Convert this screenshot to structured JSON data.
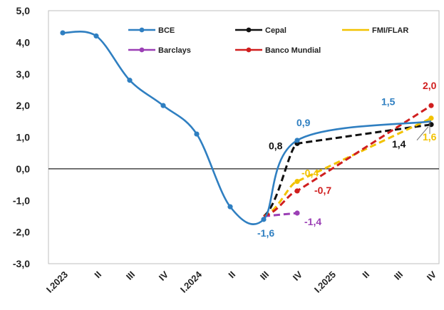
{
  "chart_data": {
    "type": "line",
    "title": "",
    "xlabel": "",
    "ylabel": "",
    "ylim": [
      -3.0,
      5.0
    ],
    "yticks": [
      "5,0",
      "4,0",
      "3,0",
      "2,0",
      "1,0",
      "0,0",
      "-1,0",
      "-2,0",
      "-3,0"
    ],
    "ytick_values": [
      5,
      4,
      3,
      2,
      1,
      0,
      -1,
      -2,
      -3
    ],
    "categories": [
      "I.2023",
      "II",
      "III",
      "IV",
      "I.2024",
      "II",
      "III",
      "IV",
      "I.2025",
      "II",
      "III",
      "IV"
    ],
    "grid": false,
    "legend_placement": "top",
    "series": [
      {
        "name": "BCE",
        "color": "#2f7fc1",
        "style": "solid-markers",
        "points": [
          [
            0,
            4.3
          ],
          [
            1,
            4.2
          ],
          [
            2,
            2.8
          ],
          [
            3,
            2.0
          ],
          [
            4,
            1.1
          ],
          [
            5,
            -1.2
          ],
          [
            6,
            -1.6
          ],
          [
            7,
            0.9
          ],
          [
            11,
            1.5
          ]
        ]
      },
      {
        "name": "Cepal",
        "color": "#111111",
        "style": "dashed",
        "points": [
          [
            6,
            -1.5
          ],
          [
            7,
            0.8
          ],
          [
            11,
            1.4
          ]
        ]
      },
      {
        "name": "FMI/FLAR",
        "color": "#f2c200",
        "style": "dashed",
        "points": [
          [
            6,
            -1.5
          ],
          [
            7,
            -0.4
          ],
          [
            11,
            1.6
          ]
        ]
      },
      {
        "name": "Barclays",
        "color": "#9b3fb5",
        "style": "dashed",
        "points": [
          [
            6,
            -1.5
          ],
          [
            7,
            -1.4
          ]
        ]
      },
      {
        "name": "Banco Mundial",
        "color": "#d01f1f",
        "style": "dashed",
        "points": [
          [
            6,
            -1.5
          ],
          [
            7,
            -0.7
          ],
          [
            11,
            2.0
          ]
        ]
      }
    ],
    "annotations": [
      {
        "text": "0,9",
        "x": 7,
        "y": 0.9,
        "color": "#2f7fc1"
      },
      {
        "text": "0,8",
        "x": 7,
        "y": 0.8,
        "color": "#111111"
      },
      {
        "text": "-0,4",
        "x": 7,
        "y": -0.4,
        "color": "#f2c200"
      },
      {
        "text": "-0,7",
        "x": 7,
        "y": -0.7,
        "color": "#d01f1f"
      },
      {
        "text": "-1,6",
        "x": 6,
        "y": -1.6,
        "color": "#2f7fc1"
      },
      {
        "text": "-1,4",
        "x": 7,
        "y": -1.4,
        "color": "#9b3fb5"
      },
      {
        "text": "1,5",
        "x": 11,
        "y": 1.5,
        "color": "#2f7fc1"
      },
      {
        "text": "2,0",
        "x": 11,
        "y": 2.0,
        "color": "#d01f1f"
      },
      {
        "text": "1,4",
        "x": 11,
        "y": 1.4,
        "color": "#111111"
      },
      {
        "text": "1,6",
        "x": 11,
        "y": 1.6,
        "color": "#f2c200"
      }
    ]
  }
}
